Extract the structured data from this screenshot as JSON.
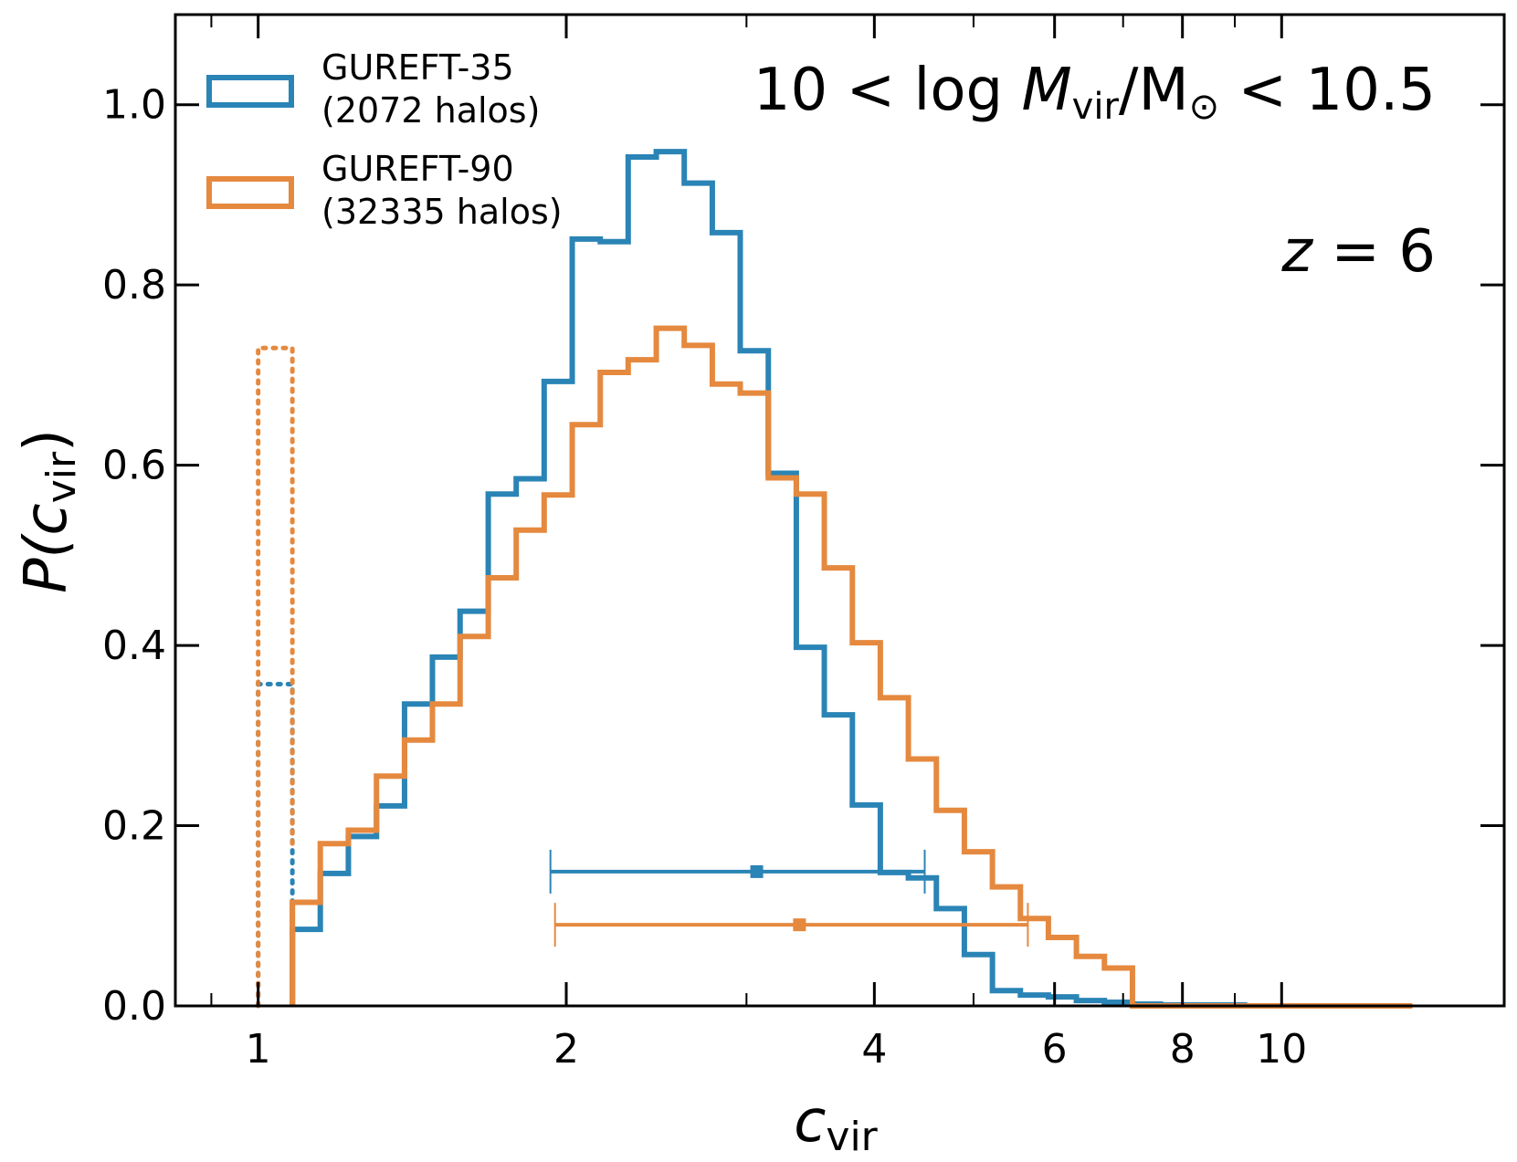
{
  "chart_data": {
    "type": "histogram",
    "xscale": "log",
    "xlim": [
      0.83,
      16.5
    ],
    "ylim": [
      0.0,
      1.1
    ],
    "xlabel": {
      "main": "c",
      "sub": "vir"
    },
    "ylabel": {
      "main": "P(c",
      "sub": "vir",
      "close": ")"
    },
    "xticks": [
      1,
      2,
      4,
      6,
      8,
      10
    ],
    "xtick_labels": [
      "1",
      "2",
      "4",
      "6",
      "8",
      "10"
    ],
    "yticks": [
      0.0,
      0.2,
      0.4,
      0.6,
      0.8,
      1.0
    ],
    "ytick_labels": [
      "0.0",
      "0.2",
      "0.4",
      "0.6",
      "0.8",
      "1.0"
    ],
    "annotations": {
      "mass_range": {
        "left": "10 < log ",
        "m": "M",
        "vir": "vir",
        "mid": "/M",
        "sun": "⊙",
        "right": " < 10.5"
      },
      "redshift": {
        "z": "z",
        "rest": " = 6"
      }
    },
    "series": [
      {
        "name": "GUREFT-35",
        "legend_line1": "GUREFT-35",
        "legend_line2": "(2072 halos)",
        "color": "#2a84b6",
        "step_edges": [
          1.08,
          1.15,
          1.225,
          1.305,
          1.39,
          1.48,
          1.575,
          1.678,
          1.787,
          1.903,
          2.027,
          2.159,
          2.299,
          2.449,
          2.608,
          2.778,
          2.958,
          3.151,
          3.356,
          3.574,
          3.807,
          4.054,
          4.318,
          4.599,
          4.898,
          5.217,
          5.556,
          5.917,
          6.302,
          6.712,
          7.149,
          7.614,
          8.109,
          8.637,
          9.199,
          9.797,
          10.434,
          11.113,
          11.836,
          12.606
        ],
        "step_values": [
          0.085,
          0.147,
          0.188,
          0.222,
          0.335,
          0.387,
          0.438,
          0.568,
          0.585,
          0.693,
          0.851,
          0.848,
          0.942,
          0.948,
          0.913,
          0.858,
          0.727,
          0.591,
          0.398,
          0.323,
          0.223,
          0.148,
          0.142,
          0.108,
          0.057,
          0.017,
          0.012,
          0.01,
          0.006,
          0.004,
          0.002,
          0.001,
          0.001,
          0.001,
          0.0,
          0.0,
          0.0,
          0.0,
          0.0
        ],
        "resolved_edge": 1.08,
        "unresolved_dotted": {
          "from": 1.0,
          "to": 1.08,
          "value": 0.357,
          "tail_value": 0.113
        },
        "errorbar": {
          "x": 3.07,
          "xerr_low": 1.93,
          "xerr_high": 4.48,
          "y": 0.149
        }
      },
      {
        "name": "GUREFT-90",
        "legend_line1": "GUREFT-90",
        "legend_line2": "(32335 halos)",
        "color": "#e5893f",
        "step_edges": [
          1.08,
          1.15,
          1.225,
          1.305,
          1.39,
          1.48,
          1.575,
          1.678,
          1.787,
          1.903,
          2.027,
          2.159,
          2.299,
          2.449,
          2.608,
          2.778,
          2.958,
          3.151,
          3.356,
          3.574,
          3.807,
          4.054,
          4.318,
          4.599,
          4.898,
          5.217,
          5.556,
          5.917,
          6.302,
          6.712,
          7.149,
          7.614,
          8.109,
          8.637,
          9.199,
          9.797,
          10.434,
          11.113,
          11.836,
          12.606,
          13.42
        ],
        "step_values": [
          0.115,
          0.18,
          0.195,
          0.255,
          0.295,
          0.335,
          0.41,
          0.475,
          0.528,
          0.567,
          0.645,
          0.703,
          0.717,
          0.752,
          0.733,
          0.69,
          0.68,
          0.586,
          0.568,
          0.486,
          0.403,
          0.342,
          0.274,
          0.217,
          0.171,
          0.132,
          0.097,
          0.076,
          0.055,
          0.042,
          0.0,
          0.0,
          0.0,
          0.0,
          0.0,
          0.0,
          0.0,
          0.0,
          0.0,
          0.0
        ],
        "resolved_edge": 1.08,
        "unresolved_dotted": {
          "from": 1.0,
          "to": 1.08,
          "value": 0.73,
          "tail_value": 0.178
        },
        "errorbar": {
          "x": 3.38,
          "xerr_low": 1.95,
          "xerr_high": 5.65,
          "y": 0.09
        }
      }
    ]
  }
}
